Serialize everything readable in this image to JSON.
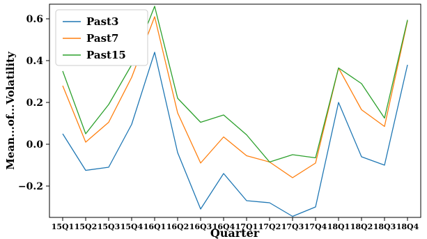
{
  "chart_data": {
    "type": "line",
    "xlabel": "Quarter",
    "ylabel": "Mean...of...Volatility",
    "categories": [
      "15Q1",
      "15Q2",
      "15Q3",
      "15Q4",
      "16Q1",
      "16Q2",
      "16Q3",
      "16Q4",
      "17Q1",
      "17Q2",
      "17Q3",
      "17Q4",
      "18Q1",
      "18Q2",
      "18Q3",
      "18Q4"
    ],
    "y_ticks": [
      "−0.2",
      "0.0",
      "0.2",
      "0.4",
      "0.6"
    ],
    "y_tick_values": [
      -0.2,
      0.0,
      0.2,
      0.4,
      0.6
    ],
    "ylim": [
      -0.35,
      0.67
    ],
    "grid": false,
    "legend_position": "top-left",
    "series": [
      {
        "name": "Past3",
        "color": "#1f77b4",
        "values": [
          0.05,
          -0.125,
          -0.11,
          0.095,
          0.44,
          -0.04,
          -0.31,
          -0.14,
          -0.27,
          -0.28,
          -0.345,
          -0.3,
          0.2,
          -0.06,
          -0.1,
          0.38
        ]
      },
      {
        "name": "Past7",
        "color": "#ff7f0e",
        "values": [
          0.28,
          0.01,
          0.105,
          0.32,
          0.61,
          0.15,
          -0.09,
          0.035,
          -0.055,
          -0.085,
          -0.16,
          -0.09,
          0.365,
          0.165,
          0.085,
          0.59
        ]
      },
      {
        "name": "Past15",
        "color": "#2ca02c",
        "values": [
          0.35,
          0.05,
          0.19,
          0.38,
          0.66,
          0.22,
          0.105,
          0.14,
          0.045,
          -0.085,
          -0.05,
          -0.065,
          0.365,
          0.29,
          0.125,
          0.595
        ]
      }
    ]
  }
}
